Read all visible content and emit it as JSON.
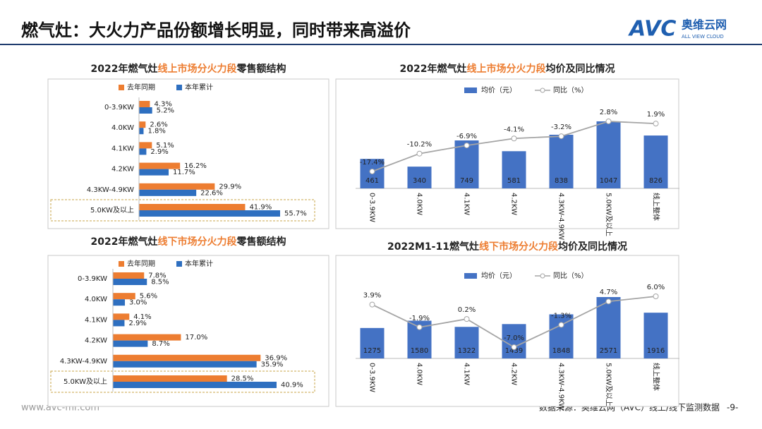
{
  "header": {
    "title": "燃气灶：大火力产品份额增长明显，同时带来高溢价"
  },
  "logo": {
    "brand": "AVC",
    "name": "奥维云网",
    "tagline": "ALL VIEW CLOUD"
  },
  "footer": {
    "website": "www.avc-mr.com",
    "source": "数据来源：奥维云网（AVC）线上/线下监测数据",
    "page": "-9-"
  },
  "chart_data": [
    {
      "type": "hbar",
      "title": [
        "2022年燃气灶",
        "线上市场分火力段",
        "零售额结构"
      ],
      "categories": [
        "0-3.9KW",
        "4.0KW",
        "4.1KW",
        "4.2KW",
        "4.3KW-4.9KW",
        "5.0KW及以上"
      ],
      "series": [
        {
          "name": "去年同期",
          "color": "#ed7d31",
          "values": [
            4.3,
            2.6,
            5.1,
            16.2,
            29.9,
            41.9
          ],
          "value_labels": [
            "4.3%",
            "2.6%",
            "5.1%",
            "16.2%",
            "29.9%",
            "41.9%"
          ]
        },
        {
          "name": "本年累计",
          "color": "#2e6fc0",
          "values": [
            5.2,
            1.8,
            2.9,
            11.7,
            22.6,
            55.7
          ],
          "value_labels": [
            "5.2%",
            "1.8%",
            "2.9%",
            "11.7%",
            "22.6%",
            "55.7%"
          ]
        }
      ]
    },
    {
      "type": "combo",
      "title": [
        "2022年燃气灶",
        "线上市场分火力段",
        "均价及同比情况"
      ],
      "categories": [
        "0-3.9KW",
        "4.0KW",
        "4.1KW",
        "4.2KW",
        "4.3KW-4.9KW",
        "5.0KW及以上",
        "线上整体"
      ],
      "series": [
        {
          "name": "均价（元）",
          "type": "bar",
          "color": "#4472c4",
          "values": [
            461,
            340,
            749,
            581,
            838,
            1047,
            826
          ]
        },
        {
          "name": "同比（%）",
          "type": "line",
          "axis": "y2",
          "color": "#a5a5a5",
          "values": [
            -17.4,
            -10.2,
            -6.9,
            -4.1,
            -3.2,
            2.8,
            1.9
          ],
          "value_labels": [
            "-17.4%",
            "-10.2%",
            "-6.9%",
            "-4.1%",
            "-3.2%",
            "2.8%",
            "1.9%"
          ]
        }
      ]
    },
    {
      "type": "hbar",
      "title": [
        "2022年燃气灶",
        "线下市场分火力段",
        "零售额结构"
      ],
      "categories": [
        "0-3.9KW",
        "4.0KW",
        "4.1KW",
        "4.2KW",
        "4.3KW-4.9KW",
        "5.0KW及以上"
      ],
      "series": [
        {
          "name": "去年同期",
          "color": "#ed7d31",
          "values": [
            7.8,
            5.6,
            4.1,
            17.0,
            36.9,
            28.5
          ],
          "value_labels": [
            "7.8%",
            "5.6%",
            "4.1%",
            "17.0%",
            "36.9%",
            "28.5%"
          ]
        },
        {
          "name": "本年累计",
          "color": "#2e6fc0",
          "values": [
            8.5,
            3.0,
            2.9,
            8.7,
            35.9,
            40.9
          ],
          "value_labels": [
            "8.5%",
            "3.0%",
            "2.9%",
            "8.7%",
            "35.9%",
            "40.9%"
          ]
        }
      ]
    },
    {
      "type": "combo",
      "title": [
        "2022M1-11燃气灶",
        "线下市场分火力段",
        "均价及同比情况"
      ],
      "categories": [
        "0-3.9KW",
        "4.0KW",
        "4.1KW",
        "4.2KW",
        "4.3KW-4.9KW",
        "5.0KW及以上",
        "线上整体"
      ],
      "series": [
        {
          "name": "均价（元）",
          "type": "bar",
          "color": "#4472c4",
          "values": [
            1275,
            1580,
            1322,
            1439,
            1848,
            2571,
            1916
          ]
        },
        {
          "name": "同比（%）",
          "type": "line",
          "axis": "y2",
          "color": "#a5a5a5",
          "values": [
            3.9,
            -1.9,
            0.2,
            -7.0,
            -1.3,
            4.7,
            6.0
          ],
          "value_labels": [
            "3.9%",
            "-1.9%",
            "0.2%",
            "-7.0%",
            "-1.3%",
            "4.7%",
            "6.0%"
          ]
        }
      ]
    }
  ]
}
